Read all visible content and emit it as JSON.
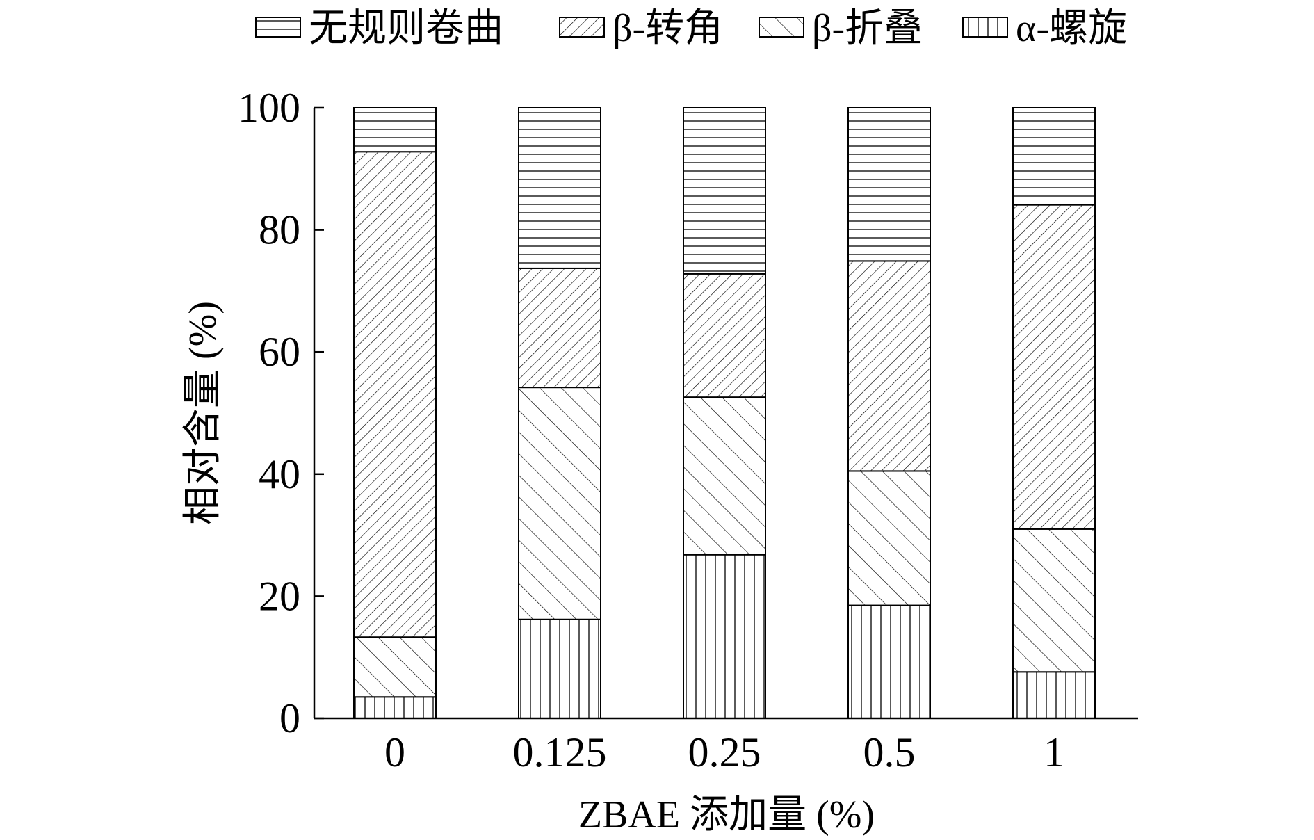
{
  "chart_data": {
    "type": "bar",
    "stacked": true,
    "xlabel": "ZBAE 添加量 (%)",
    "ylabel": "相对含量 (%)",
    "categories": [
      "0",
      "0.125",
      "0.25",
      "0.5",
      "1"
    ],
    "ylim": [
      0,
      100
    ],
    "yticks": [
      "0",
      "20",
      "40",
      "60",
      "80",
      "100"
    ],
    "series": [
      {
        "name": "α-螺旋",
        "values": [
          3.5,
          16.2,
          26.8,
          18.5,
          7.6
        ],
        "pattern": "vertical"
      },
      {
        "name": "β-折叠",
        "values": [
          9.8,
          38.0,
          25.8,
          22.0,
          23.4
        ],
        "pattern": "diag-up"
      },
      {
        "name": "β-转角",
        "values": [
          79.5,
          19.5,
          20.2,
          34.4,
          53.1
        ],
        "pattern": "diag-down"
      },
      {
        "name": "无规则卷曲",
        "values": [
          7.2,
          26.3,
          27.2,
          25.1,
          15.9
        ],
        "pattern": "horizontal"
      }
    ],
    "legend": {
      "placement": "top",
      "order": [
        "无规则卷曲",
        "β-转角",
        "β-折叠",
        "α-螺旋"
      ]
    },
    "grid": false,
    "colors": {
      "stroke": "#000000",
      "fill": "#ffffff"
    }
  }
}
